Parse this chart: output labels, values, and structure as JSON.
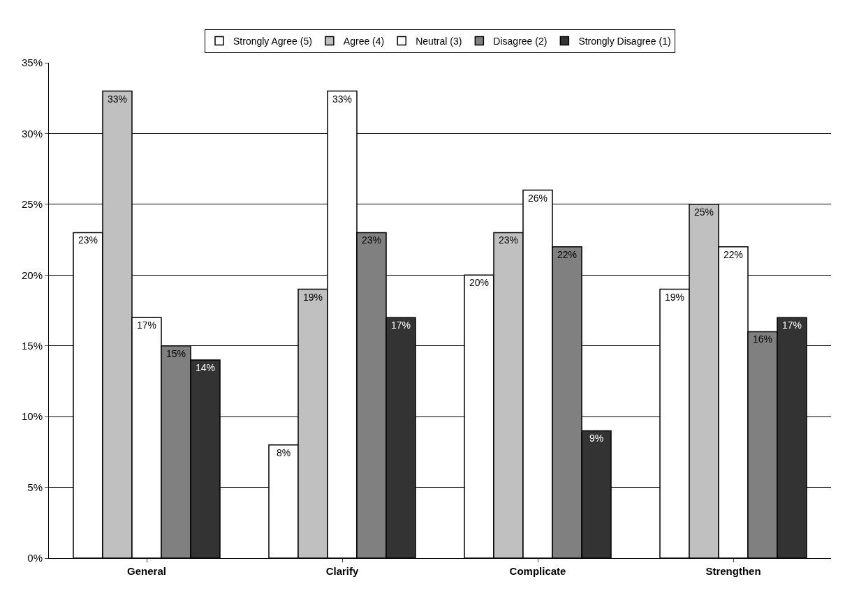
{
  "chart_data": {
    "type": "bar",
    "categories": [
      "General",
      "Clarify",
      "Complicate",
      "Strengthen"
    ],
    "series": [
      {
        "name": "Strongly Agree (5)",
        "color": "#ffffff",
        "values": [
          23,
          8,
          20,
          19
        ],
        "value_labels": [
          "23%",
          "8%",
          "20%",
          "19%"
        ]
      },
      {
        "name": "Agree (4)",
        "color": "#c0c0c0",
        "values": [
          33,
          19,
          23,
          25
        ],
        "value_labels": [
          "33%",
          "19%",
          "23%",
          "25%"
        ]
      },
      {
        "name": "Neutral (3)",
        "color": "#ffffff",
        "values": [
          17,
          33,
          26,
          22
        ],
        "value_labels": [
          "17%",
          "33%",
          "26%",
          "22%"
        ]
      },
      {
        "name": "Disagree (2)",
        "color": "#808080",
        "values": [
          15,
          23,
          22,
          16
        ],
        "value_labels": [
          "15%",
          "23%",
          "22%",
          "16%"
        ]
      },
      {
        "name": "Strongly Disagree (1)",
        "color": "#333333",
        "values": [
          14,
          17,
          9,
          17
        ],
        "value_labels": [
          "14%",
          "17%",
          "9%",
          "17%"
        ]
      }
    ],
    "ylim": [
      0,
      35
    ],
    "yticks": [
      {
        "value": 0,
        "label": "0%"
      },
      {
        "value": 5,
        "label": "5%"
      },
      {
        "value": 10,
        "label": "10%"
      },
      {
        "value": 15,
        "label": "15%"
      },
      {
        "value": 20,
        "label": "20%"
      },
      {
        "value": 25,
        "label": "25%"
      },
      {
        "value": 30,
        "label": "30%"
      },
      {
        "value": 35,
        "label": "35%"
      }
    ],
    "grid": "y",
    "legend": "top"
  }
}
